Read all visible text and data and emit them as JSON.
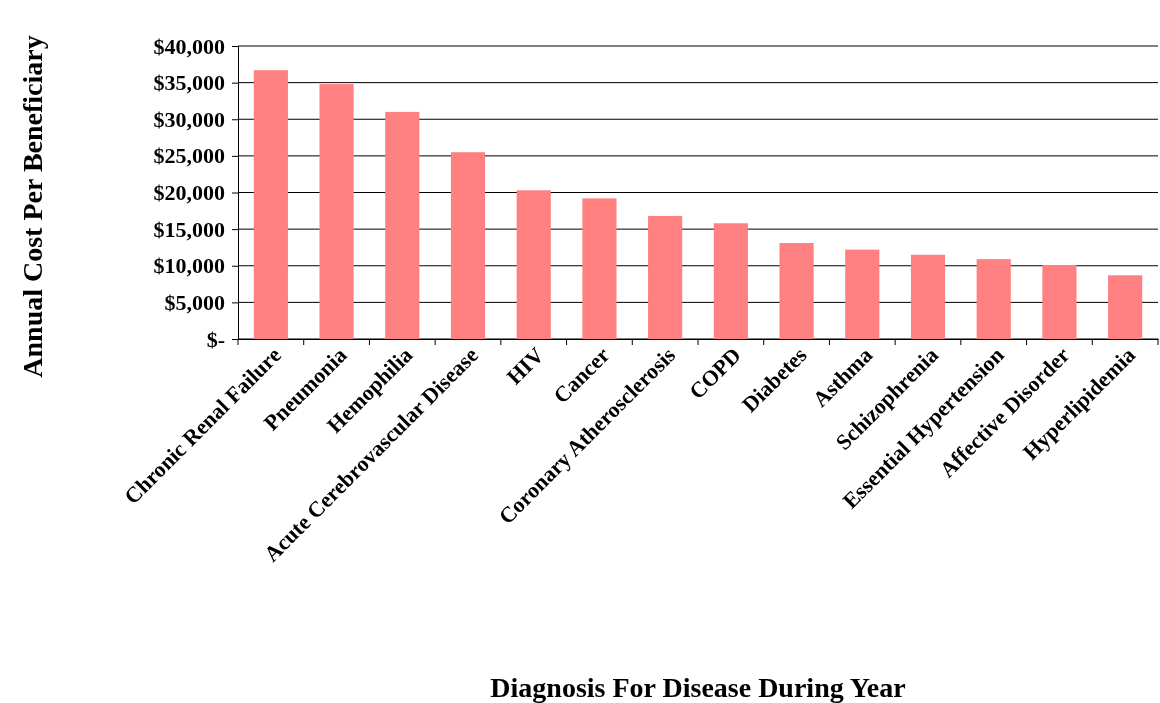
{
  "chart_data": {
    "type": "bar",
    "xlabel": "Diagnosis For Disease During Year",
    "ylabel": "Annual Cost Per Beneficiary",
    "categories": [
      "Chronic Renal Failure",
      "Pneumonia",
      "Hemophilia",
      "Acute Cerebrovascular Disease",
      "HIV",
      "Cancer",
      "Coronary Atherosclerosis",
      "COPD",
      "Diabetes",
      "Asthma",
      "Schizophrenia",
      "Essential Hypertension",
      "Affective Disorder",
      "Hyperlipidemia"
    ],
    "values": [
      36700,
      34800,
      31000,
      25500,
      20300,
      19200,
      16800,
      15800,
      13100,
      12200,
      11500,
      10900,
      10100,
      8700
    ],
    "color": "#ff8080",
    "ylim": [
      0,
      40000
    ],
    "yticks": [
      {
        "value": 0,
        "label": "$-"
      },
      {
        "value": 5000,
        "label": "$5,000"
      },
      {
        "value": 10000,
        "label": "$10,000"
      },
      {
        "value": 15000,
        "label": "$15,000"
      },
      {
        "value": 20000,
        "label": "$20,000"
      },
      {
        "value": 25000,
        "label": "$25,000"
      },
      {
        "value": 30000,
        "label": "$30,000"
      },
      {
        "value": 35000,
        "label": "$35,000"
      },
      {
        "value": 40000,
        "label": "$40,000"
      }
    ],
    "grid": "y"
  }
}
